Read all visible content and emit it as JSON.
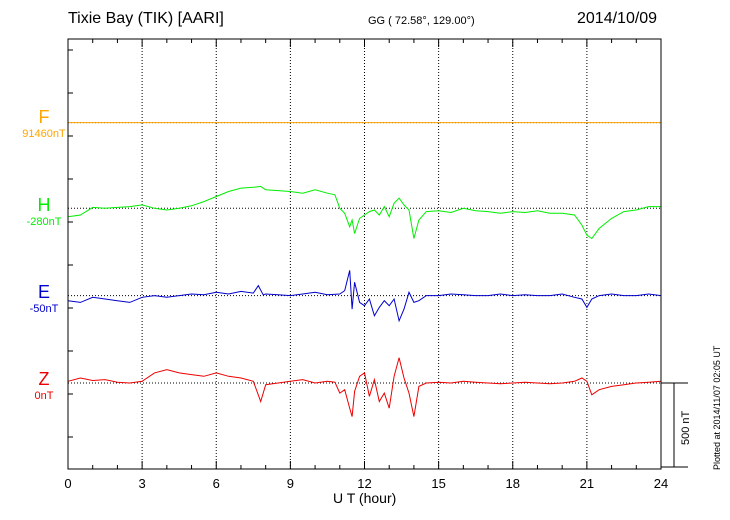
{
  "header": {
    "title": "Tixie Bay (TIK)  [AARI]",
    "coords": "GG ( 72.58°, 129.00°)",
    "date": "2014/10/09"
  },
  "plotted_note": "Plotted at 2014/11/07 02:05 UT",
  "scale_bar_label": "500 nT",
  "chart_data": {
    "type": "line",
    "xlabel": "U T (hour)",
    "xlim": [
      0,
      24
    ],
    "xticks": [
      "0",
      "3",
      "6",
      "9",
      "12",
      "15",
      "18",
      "21",
      "24"
    ],
    "vertical_grid": true,
    "scale_bar_nT": 500,
    "series": [
      {
        "name": "F",
        "baseline_label": "91460nT",
        "color": "#ffa500",
        "offset_nT": 1550,
        "x": [
          0,
          24
        ],
        "y": [
          0,
          0
        ]
      },
      {
        "name": "H",
        "baseline_label": "-280nT",
        "color": "#00ee00",
        "offset_nT": 1040,
        "x": [
          0,
          0.5,
          1,
          1.5,
          2,
          2.5,
          3,
          3.5,
          4,
          4.5,
          5,
          5.5,
          6,
          6.5,
          7,
          7.5,
          7.8,
          8,
          8.5,
          9,
          9.5,
          10,
          10.5,
          10.8,
          11,
          11.2,
          11.4,
          11.5,
          11.6,
          11.8,
          12,
          12.2,
          12.4,
          12.6,
          12.8,
          13,
          13.2,
          13.4,
          13.6,
          13.8,
          14,
          14.2,
          14.5,
          15,
          15.5,
          16,
          16.5,
          17,
          17.5,
          18,
          18.5,
          19,
          19.5,
          20,
          20.5,
          20.8,
          21,
          21.2,
          21.5,
          22,
          22.5,
          23,
          23.5,
          24
        ],
        "y": [
          -50,
          -40,
          5,
          0,
          5,
          10,
          20,
          0,
          -10,
          0,
          15,
          40,
          70,
          100,
          120,
          125,
          130,
          110,
          105,
          100,
          90,
          110,
          90,
          80,
          0,
          -30,
          -110,
          -70,
          -150,
          -60,
          -40,
          -20,
          -10,
          -40,
          10,
          -50,
          30,
          60,
          20,
          -10,
          -180,
          -70,
          -20,
          -15,
          -25,
          0,
          -15,
          -20,
          -30,
          -20,
          -25,
          -15,
          -30,
          -30,
          -40,
          -100,
          -160,
          -180,
          -120,
          -60,
          -20,
          -10,
          10,
          10
        ]
      },
      {
        "name": "E",
        "baseline_label": "-50nT",
        "color": "#0000cc",
        "offset_nT": 520,
        "x": [
          0,
          0.5,
          1,
          1.5,
          2,
          2.5,
          3,
          3.5,
          4,
          4.5,
          5,
          5.5,
          6,
          6.5,
          7,
          7.5,
          7.7,
          7.9,
          8,
          8.5,
          9,
          9.5,
          10,
          10.5,
          11,
          11.2,
          11.4,
          11.5,
          11.6,
          11.8,
          12,
          12.2,
          12.4,
          12.6,
          12.8,
          13,
          13.2,
          13.4,
          13.6,
          13.8,
          14,
          14.2,
          14.5,
          15,
          15.5,
          16,
          16.5,
          17,
          17.5,
          18,
          18.5,
          19,
          19.5,
          20,
          20.5,
          20.8,
          21,
          21.2,
          21.5,
          22,
          22.5,
          23,
          23.5,
          24
        ],
        "y": [
          -30,
          -40,
          -10,
          -20,
          -30,
          -40,
          -10,
          0,
          -10,
          0,
          10,
          5,
          20,
          10,
          25,
          15,
          60,
          5,
          10,
          5,
          0,
          10,
          20,
          5,
          10,
          30,
          150,
          -80,
          80,
          -40,
          -60,
          -20,
          -120,
          -70,
          -30,
          -60,
          -20,
          -150,
          -80,
          20,
          -40,
          -30,
          0,
          0,
          10,
          5,
          0,
          0,
          10,
          0,
          5,
          0,
          0,
          10,
          -10,
          -20,
          -70,
          -20,
          0,
          10,
          0,
          0,
          10,
          0
        ]
      },
      {
        "name": "Z",
        "baseline_label": "0nT",
        "color": "#ee0000",
        "offset_nT": 0,
        "x": [
          0,
          0.5,
          1,
          1.5,
          2,
          2.5,
          3,
          3.5,
          4,
          4.5,
          5,
          5.5,
          6,
          6.5,
          7,
          7.5,
          7.8,
          8,
          8.5,
          9,
          9.5,
          10,
          10.5,
          10.8,
          11,
          11.2,
          11.4,
          11.5,
          11.6,
          11.8,
          12,
          12.2,
          12.4,
          12.6,
          12.8,
          13,
          13.2,
          13.4,
          13.6,
          13.8,
          14,
          14.2,
          14.5,
          15,
          15.5,
          16,
          16.5,
          17,
          17.5,
          18,
          18.5,
          19,
          19.5,
          20,
          20.5,
          20.8,
          21,
          21.2,
          21.5,
          22,
          22.5,
          23,
          23.5,
          24
        ],
        "y": [
          10,
          30,
          15,
          20,
          5,
          0,
          10,
          60,
          80,
          60,
          50,
          40,
          60,
          40,
          30,
          10,
          -110,
          -10,
          0,
          10,
          20,
          0,
          10,
          5,
          -60,
          -40,
          -150,
          -200,
          -50,
          40,
          60,
          -80,
          20,
          -110,
          -60,
          -150,
          40,
          150,
          30,
          -60,
          -200,
          -20,
          0,
          5,
          0,
          10,
          5,
          0,
          -5,
          0,
          5,
          0,
          -5,
          0,
          10,
          30,
          10,
          -70,
          -40,
          -20,
          -10,
          0,
          5,
          10
        ]
      }
    ]
  }
}
